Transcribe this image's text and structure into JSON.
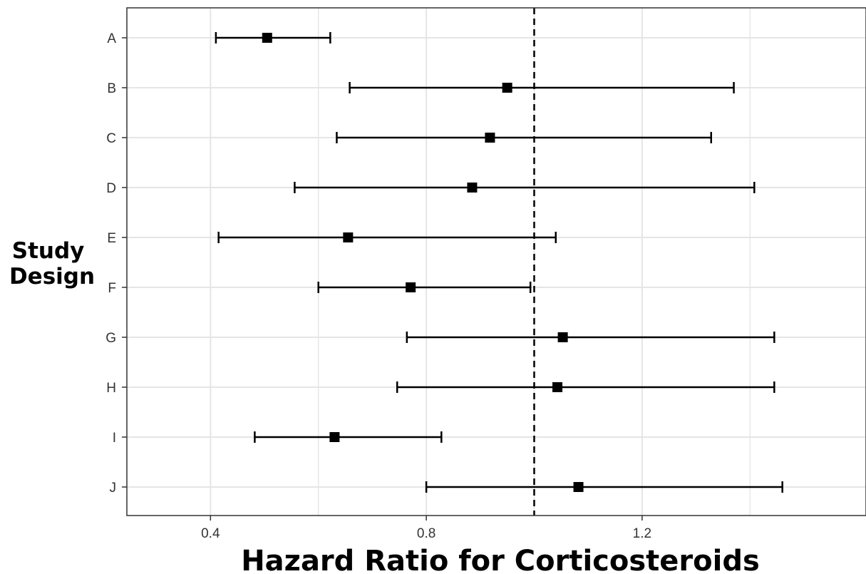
{
  "chart_data": {
    "type": "forest",
    "xlabel": "Hazard Ratio for Corticosteroids",
    "ylabel_lines": [
      "Study",
      "Design"
    ],
    "xlim": [
      0.245,
      1.615
    ],
    "xticks": [
      0.4,
      0.8,
      1.2
    ],
    "xtick_labels": [
      "0.4",
      "0.8",
      "1.2"
    ],
    "minor_gridlines": [
      0.6,
      1.0,
      1.4
    ],
    "reference_line": 1.0,
    "grid": true,
    "categories": [
      "A",
      "B",
      "C",
      "D",
      "E",
      "F",
      "G",
      "H",
      "I",
      "J"
    ],
    "estimates": [
      0.505,
      0.95,
      0.918,
      0.885,
      0.655,
      0.771,
      1.053,
      1.043,
      0.63,
      1.082
    ],
    "lower": [
      0.41,
      0.658,
      0.634,
      0.556,
      0.415,
      0.6,
      0.764,
      0.746,
      0.482,
      0.8
    ],
    "upper": [
      0.622,
      1.37,
      1.328,
      1.408,
      1.04,
      0.993,
      1.445,
      1.445,
      0.828,
      1.46
    ],
    "colors": {
      "marker": "#000000",
      "grid": "#e5e5e5",
      "panel_border": "#333333"
    }
  }
}
